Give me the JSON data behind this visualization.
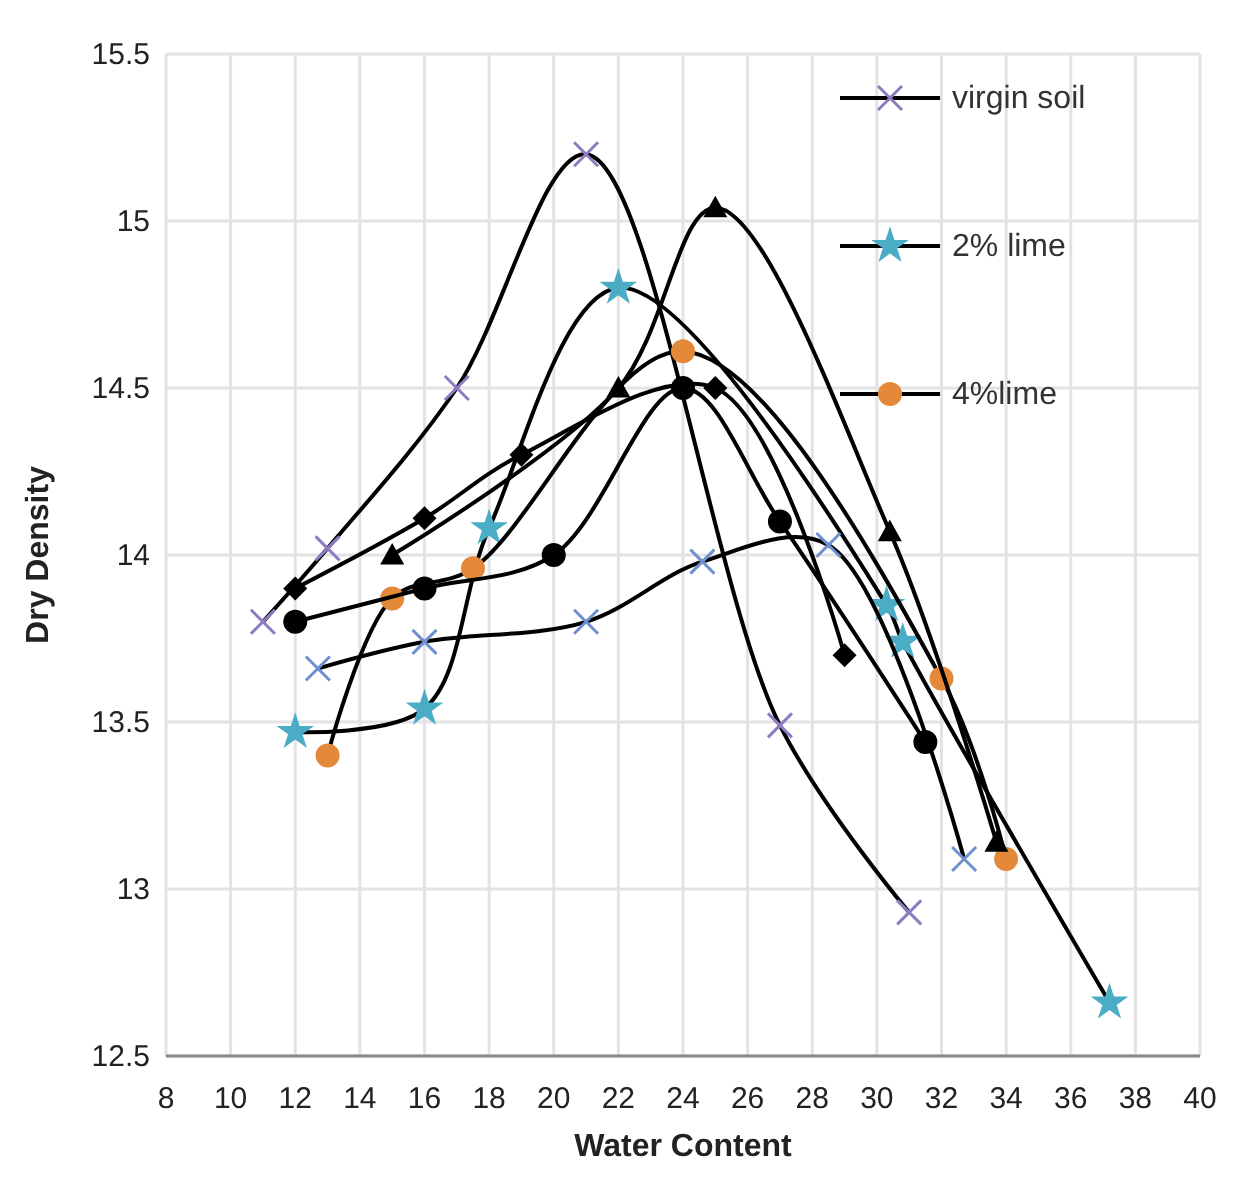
{
  "chart_data": {
    "type": "line",
    "xlabel": "Water Content",
    "ylabel": "Dry Density",
    "xlim": [
      8,
      40
    ],
    "ylim": [
      12.5,
      15.5
    ],
    "xticks": [
      8,
      10,
      12,
      14,
      16,
      18,
      20,
      22,
      24,
      26,
      28,
      30,
      32,
      34,
      36,
      38,
      40
    ],
    "yticks": [
      12.5,
      13,
      13.5,
      14,
      14.5,
      15,
      15.5
    ],
    "grid": true,
    "legend": "top right",
    "series": [
      {
        "name": "virgin soil",
        "color": "#8e7cc3",
        "marker": "cross",
        "x": [
          11,
          13,
          17,
          21,
          27,
          31
        ],
        "values": [
          13.8,
          14.02,
          14.5,
          15.2,
          13.49,
          12.93
        ]
      },
      {
        "name": "2% lime",
        "color": "#4bacc6",
        "marker": "star",
        "x": [
          12,
          16,
          18,
          22,
          30.3,
          30.8,
          37.2
        ],
        "values": [
          13.47,
          13.54,
          14.08,
          14.8,
          13.85,
          13.74,
          12.66
        ]
      },
      {
        "name": "4%lime",
        "color": "#e4893a",
        "marker": "circle",
        "x": [
          13,
          15,
          17.5,
          24,
          32,
          34
        ],
        "values": [
          13.4,
          13.87,
          13.96,
          14.61,
          13.63,
          13.09
        ]
      },
      {
        "color": "#000000",
        "marker": "diamond",
        "x": [
          12,
          16,
          19,
          25,
          29
        ],
        "values": [
          13.9,
          14.11,
          14.3,
          14.5,
          13.7
        ]
      },
      {
        "color": "#000000",
        "marker": "triangle",
        "x": [
          15,
          22,
          25,
          30.4,
          33.7
        ],
        "values": [
          14,
          14.5,
          15.04,
          14.07,
          13.14
        ]
      },
      {
        "color": "#000000",
        "marker": "circle",
        "x": [
          12,
          16,
          20,
          24,
          27,
          31.5
        ],
        "values": [
          13.8,
          13.9,
          14,
          14.5,
          14.1,
          13.44
        ]
      },
      {
        "color": "#6f8fd0",
        "marker": "cross",
        "x": [
          12.7,
          16,
          21,
          24.6,
          28.5,
          32.7
        ],
        "values": [
          13.66,
          13.74,
          13.8,
          13.98,
          14.03,
          13.09
        ]
      }
    ]
  }
}
